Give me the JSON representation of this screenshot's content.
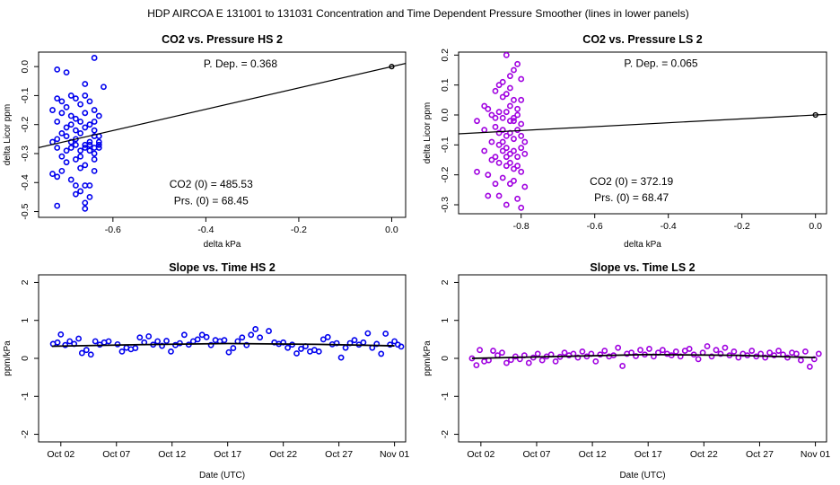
{
  "figure_title": "HDP    AIRCOA E    131001 to 131031    Concentration and Time Dependent Pressure Smoother (lines in lower panels)",
  "chart_data": [
    {
      "id": "p1",
      "type": "scatter",
      "title": "CO2 vs. Pressure HS 2",
      "xlabel": "delta kPa",
      "ylabel": "delta Licor ppm",
      "xlim": [
        -0.76,
        0.03
      ],
      "ylim": [
        -0.52,
        0.05
      ],
      "xticks": [
        -0.6,
        -0.4,
        -0.2,
        0.0
      ],
      "xtick_labels": [
        "-0.6",
        "-0.4",
        "-0.2",
        "0.0"
      ],
      "yticks": [
        0.0,
        -0.1,
        -0.2,
        -0.3,
        -0.4,
        -0.5
      ],
      "ytick_labels": [
        "0.0",
        "-0.1",
        "-0.2",
        "-0.3",
        "-0.4",
        "-0.5"
      ],
      "color": "#0000ee",
      "fit_line": {
        "slope": 0.368,
        "intercept": 0.0
      },
      "zero_point": [
        0.0,
        0.0
      ],
      "annotations": {
        "pdep": "P. Dep. =  0.368",
        "co2": "CO2 (0) =  485.53",
        "prs": "Prs. (0) =  68.45"
      },
      "points": [
        [
          -0.72,
          -0.01
        ],
        [
          -0.7,
          -0.02
        ],
        [
          -0.64,
          0.03
        ],
        [
          -0.62,
          -0.07
        ],
        [
          -0.66,
          -0.06
        ],
        [
          -0.72,
          -0.11
        ],
        [
          -0.71,
          -0.12
        ],
        [
          -0.69,
          -0.1
        ],
        [
          -0.68,
          -0.11
        ],
        [
          -0.66,
          -0.1
        ],
        [
          -0.67,
          -0.13
        ],
        [
          -0.73,
          -0.15
        ],
        [
          -0.71,
          -0.16
        ],
        [
          -0.7,
          -0.14
        ],
        [
          -0.65,
          -0.12
        ],
        [
          -0.64,
          -0.15
        ],
        [
          -0.63,
          -0.17
        ],
        [
          -0.72,
          -0.19
        ],
        [
          -0.69,
          -0.2
        ],
        [
          -0.68,
          -0.22
        ],
        [
          -0.67,
          -0.19
        ],
        [
          -0.66,
          -0.21
        ],
        [
          -0.65,
          -0.2
        ],
        [
          -0.64,
          -0.24
        ],
        [
          -0.73,
          -0.26
        ],
        [
          -0.72,
          -0.28
        ],
        [
          -0.7,
          -0.24
        ],
        [
          -0.69,
          -0.26
        ],
        [
          -0.68,
          -0.25
        ],
        [
          -0.68,
          -0.27
        ],
        [
          -0.67,
          -0.23
        ],
        [
          -0.67,
          -0.29
        ],
        [
          -0.66,
          -0.27
        ],
        [
          -0.66,
          -0.28
        ],
        [
          -0.65,
          -0.27
        ],
        [
          -0.65,
          -0.29
        ],
        [
          -0.64,
          -0.28
        ],
        [
          -0.64,
          -0.3
        ],
        [
          -0.63,
          -0.28
        ],
        [
          -0.63,
          -0.27
        ],
        [
          -0.71,
          -0.31
        ],
        [
          -0.7,
          -0.33
        ],
        [
          -0.68,
          -0.32
        ],
        [
          -0.67,
          -0.35
        ],
        [
          -0.66,
          -0.34
        ],
        [
          -0.64,
          -0.36
        ],
        [
          -0.73,
          -0.37
        ],
        [
          -0.72,
          -0.38
        ],
        [
          -0.69,
          -0.39
        ],
        [
          -0.68,
          -0.41
        ],
        [
          -0.67,
          -0.43
        ],
        [
          -0.66,
          -0.41
        ],
        [
          -0.65,
          -0.45
        ],
        [
          -0.65,
          -0.41
        ],
        [
          -0.66,
          -0.47
        ],
        [
          -0.66,
          -0.49
        ],
        [
          -0.72,
          -0.48
        ],
        [
          -0.68,
          -0.44
        ],
        [
          -0.63,
          -0.26
        ],
        [
          -0.64,
          -0.22
        ],
        [
          -0.69,
          -0.17
        ],
        [
          -0.7,
          -0.21
        ],
        [
          -0.71,
          -0.23
        ],
        [
          -0.69,
          -0.28
        ],
        [
          -0.65,
          -0.26
        ],
        [
          -0.67,
          -0.31
        ],
        [
          -0.64,
          -0.32
        ],
        [
          -0.71,
          -0.36
        ],
        [
          -0.68,
          -0.18
        ],
        [
          -0.66,
          -0.16
        ],
        [
          -0.64,
          -0.19
        ],
        [
          -0.63,
          -0.24
        ],
        [
          -0.72,
          -0.25
        ],
        [
          -0.7,
          -0.29
        ]
      ]
    },
    {
      "id": "p2",
      "type": "scatter",
      "title": "CO2 vs. Pressure LS 2",
      "xlabel": "delta kPa",
      "ylabel": "delta Licor ppm",
      "xlim": [
        -0.97,
        0.03
      ],
      "ylim": [
        -0.33,
        0.21
      ],
      "xticks": [
        -0.8,
        -0.6,
        -0.4,
        -0.2,
        0.0
      ],
      "xtick_labels": [
        "-0.8",
        "-0.6",
        "-0.4",
        "-0.2",
        "0.0"
      ],
      "yticks": [
        0.2,
        0.1,
        0.0,
        -0.1,
        -0.2,
        -0.3
      ],
      "ytick_labels": [
        "0.2",
        "0.1",
        "0.0",
        "-0.1",
        "-0.2",
        "-0.3"
      ],
      "color": "#a000e0",
      "fit_line": {
        "slope": 0.065,
        "intercept": 0.0
      },
      "zero_point": [
        0.0,
        0.0
      ],
      "annotations": {
        "pdep": "P. Dep. =  0.065",
        "co2": "CO2 (0) =  372.19",
        "prs": "Prs. (0) =  68.47"
      },
      "points": [
        [
          -0.84,
          0.2
        ],
        [
          -0.81,
          0.17
        ],
        [
          -0.82,
          0.15
        ],
        [
          -0.83,
          0.13
        ],
        [
          -0.86,
          0.1
        ],
        [
          -0.84,
          0.07
        ],
        [
          -0.8,
          0.05
        ],
        [
          -0.87,
          0.08
        ],
        [
          -0.85,
          0.06
        ],
        [
          -0.83,
          0.03
        ],
        [
          -0.82,
          0.05
        ],
        [
          -0.81,
          0.02
        ],
        [
          -0.89,
          0.02
        ],
        [
          -0.88,
          0.0
        ],
        [
          -0.86,
          0.01
        ],
        [
          -0.85,
          -0.01
        ],
        [
          -0.84,
          0.01
        ],
        [
          -0.83,
          -0.02
        ],
        [
          -0.82,
          -0.01
        ],
        [
          -0.81,
          0.0
        ],
        [
          -0.8,
          -0.03
        ],
        [
          -0.92,
          -0.02
        ],
        [
          -0.9,
          -0.05
        ],
        [
          -0.87,
          -0.04
        ],
        [
          -0.86,
          -0.06
        ],
        [
          -0.85,
          -0.05
        ],
        [
          -0.84,
          -0.07
        ],
        [
          -0.83,
          -0.06
        ],
        [
          -0.82,
          -0.08
        ],
        [
          -0.81,
          -0.05
        ],
        [
          -0.8,
          -0.07
        ],
        [
          -0.88,
          -0.09
        ],
        [
          -0.86,
          -0.1
        ],
        [
          -0.85,
          -0.12
        ],
        [
          -0.84,
          -0.11
        ],
        [
          -0.83,
          -0.13
        ],
        [
          -0.82,
          -0.12
        ],
        [
          -0.81,
          -0.14
        ],
        [
          -0.8,
          -0.11
        ],
        [
          -0.79,
          -0.13
        ],
        [
          -0.87,
          -0.14
        ],
        [
          -0.86,
          -0.16
        ],
        [
          -0.84,
          -0.17
        ],
        [
          -0.83,
          -0.16
        ],
        [
          -0.82,
          -0.18
        ],
        [
          -0.81,
          -0.17
        ],
        [
          -0.8,
          -0.19
        ],
        [
          -0.92,
          -0.19
        ],
        [
          -0.89,
          -0.2
        ],
        [
          -0.85,
          -0.21
        ],
        [
          -0.83,
          -0.23
        ],
        [
          -0.82,
          -0.22
        ],
        [
          -0.79,
          -0.24
        ],
        [
          -0.87,
          -0.23
        ],
        [
          -0.89,
          -0.27
        ],
        [
          -0.81,
          -0.28
        ],
        [
          -0.8,
          -0.31
        ],
        [
          -0.84,
          -0.3
        ],
        [
          -0.86,
          -0.27
        ],
        [
          -0.9,
          -0.12
        ],
        [
          -0.88,
          -0.15
        ],
        [
          -0.85,
          -0.09
        ],
        [
          -0.79,
          -0.09
        ],
        [
          -0.83,
          0.09
        ],
        [
          -0.87,
          -0.01
        ],
        [
          -0.84,
          -0.14
        ],
        [
          -0.82,
          -0.02
        ],
        [
          -0.9,
          0.03
        ],
        [
          -0.8,
          0.12
        ],
        [
          -0.85,
          0.11
        ]
      ]
    },
    {
      "id": "p3",
      "type": "scatter",
      "title": "Slope vs. Time HS 2",
      "xlabel": "Date (UTC)",
      "ylabel": "ppm/kPa",
      "xlim": [
        -1,
        32
      ],
      "ylim": [
        -2.2,
        2.2
      ],
      "xticks": [
        1,
        6,
        11,
        16,
        21,
        26,
        31
      ],
      "xtick_labels": [
        "Oct 02",
        "Oct 07",
        "Oct 12",
        "Oct 17",
        "Oct 22",
        "Oct 27",
        "Nov 01"
      ],
      "yticks": [
        -2,
        -1,
        0,
        1,
        2
      ],
      "ytick_labels": [
        "-2",
        "-1",
        "0",
        "1",
        "2"
      ],
      "color": "#0000ee",
      "smoother": {
        "x": [
          0.2,
          8,
          16,
          24,
          31
        ],
        "y": [
          0.32,
          0.36,
          0.39,
          0.37,
          0.33
        ]
      },
      "points": [
        [
          0.3,
          0.38
        ],
        [
          0.7,
          0.42
        ],
        [
          1.0,
          0.63
        ],
        [
          1.4,
          0.35
        ],
        [
          1.8,
          0.45
        ],
        [
          2.2,
          0.38
        ],
        [
          2.6,
          0.52
        ],
        [
          2.9,
          0.14
        ],
        [
          3.3,
          0.22
        ],
        [
          3.7,
          0.1
        ],
        [
          4.1,
          0.45
        ],
        [
          4.5,
          0.36
        ],
        [
          4.9,
          0.42
        ],
        [
          5.3,
          0.45
        ],
        [
          6.1,
          0.37
        ],
        [
          6.5,
          0.18
        ],
        [
          6.9,
          0.28
        ],
        [
          7.3,
          0.24
        ],
        [
          7.7,
          0.27
        ],
        [
          8.1,
          0.55
        ],
        [
          8.5,
          0.42
        ],
        [
          8.9,
          0.58
        ],
        [
          9.3,
          0.36
        ],
        [
          9.7,
          0.45
        ],
        [
          10.1,
          0.33
        ],
        [
          10.5,
          0.46
        ],
        [
          10.9,
          0.18
        ],
        [
          11.3,
          0.35
        ],
        [
          11.7,
          0.4
        ],
        [
          12.1,
          0.62
        ],
        [
          12.5,
          0.36
        ],
        [
          12.9,
          0.45
        ],
        [
          13.3,
          0.5
        ],
        [
          13.7,
          0.62
        ],
        [
          14.1,
          0.56
        ],
        [
          14.5,
          0.35
        ],
        [
          14.9,
          0.48
        ],
        [
          15.3,
          0.45
        ],
        [
          15.7,
          0.48
        ],
        [
          16.1,
          0.16
        ],
        [
          16.5,
          0.27
        ],
        [
          16.9,
          0.45
        ],
        [
          17.3,
          0.55
        ],
        [
          17.7,
          0.35
        ],
        [
          18.1,
          0.62
        ],
        [
          18.5,
          0.77
        ],
        [
          18.9,
          0.55
        ],
        [
          19.7,
          0.72
        ],
        [
          20.2,
          0.42
        ],
        [
          20.6,
          0.38
        ],
        [
          21.0,
          0.42
        ],
        [
          21.4,
          0.28
        ],
        [
          21.8,
          0.36
        ],
        [
          22.2,
          0.13
        ],
        [
          22.6,
          0.25
        ],
        [
          23.0,
          0.32
        ],
        [
          23.4,
          0.18
        ],
        [
          23.8,
          0.22
        ],
        [
          24.2,
          0.18
        ],
        [
          24.6,
          0.5
        ],
        [
          25.0,
          0.56
        ],
        [
          25.4,
          0.37
        ],
        [
          25.8,
          0.4
        ],
        [
          26.2,
          0.02
        ],
        [
          26.6,
          0.28
        ],
        [
          27.0,
          0.4
        ],
        [
          27.4,
          0.48
        ],
        [
          27.8,
          0.36
        ],
        [
          28.2,
          0.42
        ],
        [
          28.6,
          0.66
        ],
        [
          29.0,
          0.28
        ],
        [
          29.4,
          0.38
        ],
        [
          29.8,
          0.12
        ],
        [
          30.2,
          0.65
        ],
        [
          30.6,
          0.36
        ],
        [
          31.0,
          0.45
        ],
        [
          31.3,
          0.36
        ],
        [
          31.6,
          0.31
        ]
      ]
    },
    {
      "id": "p4",
      "type": "scatter",
      "title": "Slope vs. Time LS 2",
      "xlabel": "Date (UTC)",
      "ylabel": "ppm/kPa",
      "xlim": [
        -1,
        32
      ],
      "ylim": [
        -2.2,
        2.2
      ],
      "xticks": [
        1,
        6,
        11,
        16,
        21,
        26,
        31
      ],
      "xtick_labels": [
        "Oct 02",
        "Oct 07",
        "Oct 12",
        "Oct 17",
        "Oct 22",
        "Oct 27",
        "Nov 01"
      ],
      "yticks": [
        -2,
        -1,
        0,
        1,
        2
      ],
      "ytick_labels": [
        "-2",
        "-1",
        "0",
        "1",
        "2"
      ],
      "color": "#a000e0",
      "smoother": {
        "x": [
          0.2,
          8,
          16,
          24,
          31
        ],
        "y": [
          0.0,
          0.05,
          0.1,
          0.08,
          0.02
        ]
      },
      "points": [
        [
          0.2,
          0.0
        ],
        [
          0.6,
          -0.18
        ],
        [
          0.9,
          0.22
        ],
        [
          1.3,
          -0.08
        ],
        [
          1.7,
          -0.05
        ],
        [
          2.1,
          0.2
        ],
        [
          2.5,
          0.08
        ],
        [
          2.9,
          0.15
        ],
        [
          3.3,
          -0.12
        ],
        [
          3.7,
          -0.04
        ],
        [
          4.1,
          0.05
        ],
        [
          4.5,
          -0.02
        ],
        [
          4.9,
          0.08
        ],
        [
          5.3,
          -0.12
        ],
        [
          5.7,
          0.02
        ],
        [
          6.1,
          0.12
        ],
        [
          6.5,
          -0.05
        ],
        [
          6.9,
          0.05
        ],
        [
          7.3,
          0.1
        ],
        [
          7.7,
          -0.08
        ],
        [
          8.1,
          0.04
        ],
        [
          8.5,
          0.15
        ],
        [
          8.9,
          0.08
        ],
        [
          9.3,
          0.12
        ],
        [
          9.7,
          0.02
        ],
        [
          10.1,
          0.18
        ],
        [
          10.5,
          0.05
        ],
        [
          10.9,
          0.12
        ],
        [
          11.3,
          -0.08
        ],
        [
          11.7,
          0.1
        ],
        [
          12.1,
          0.2
        ],
        [
          12.5,
          0.05
        ],
        [
          12.9,
          0.08
        ],
        [
          13.3,
          0.28
        ],
        [
          13.7,
          -0.2
        ],
        [
          14.1,
          0.12
        ],
        [
          14.5,
          0.15
        ],
        [
          14.9,
          0.06
        ],
        [
          15.3,
          0.22
        ],
        [
          15.7,
          0.1
        ],
        [
          16.1,
          0.25
        ],
        [
          16.5,
          0.05
        ],
        [
          16.9,
          0.15
        ],
        [
          17.3,
          0.22
        ],
        [
          17.7,
          0.12
        ],
        [
          18.1,
          0.08
        ],
        [
          18.5,
          0.18
        ],
        [
          18.9,
          0.05
        ],
        [
          19.3,
          0.2
        ],
        [
          19.7,
          0.25
        ],
        [
          20.1,
          0.1
        ],
        [
          20.5,
          -0.02
        ],
        [
          20.9,
          0.15
        ],
        [
          21.3,
          0.32
        ],
        [
          21.7,
          0.05
        ],
        [
          22.1,
          0.22
        ],
        [
          22.5,
          0.12
        ],
        [
          22.9,
          0.28
        ],
        [
          23.3,
          0.08
        ],
        [
          23.7,
          0.18
        ],
        [
          24.1,
          0.02
        ],
        [
          24.5,
          0.12
        ],
        [
          24.9,
          0.08
        ],
        [
          25.3,
          0.2
        ],
        [
          25.7,
          0.05
        ],
        [
          26.1,
          0.12
        ],
        [
          26.5,
          0.02
        ],
        [
          26.9,
          0.15
        ],
        [
          27.3,
          0.08
        ],
        [
          27.7,
          0.2
        ],
        [
          28.1,
          0.1
        ],
        [
          28.5,
          0.02
        ],
        [
          28.9,
          0.15
        ],
        [
          29.3,
          0.12
        ],
        [
          29.7,
          -0.05
        ],
        [
          30.1,
          0.18
        ],
        [
          30.5,
          -0.22
        ],
        [
          30.9,
          -0.02
        ],
        [
          31.3,
          0.12
        ]
      ]
    }
  ]
}
